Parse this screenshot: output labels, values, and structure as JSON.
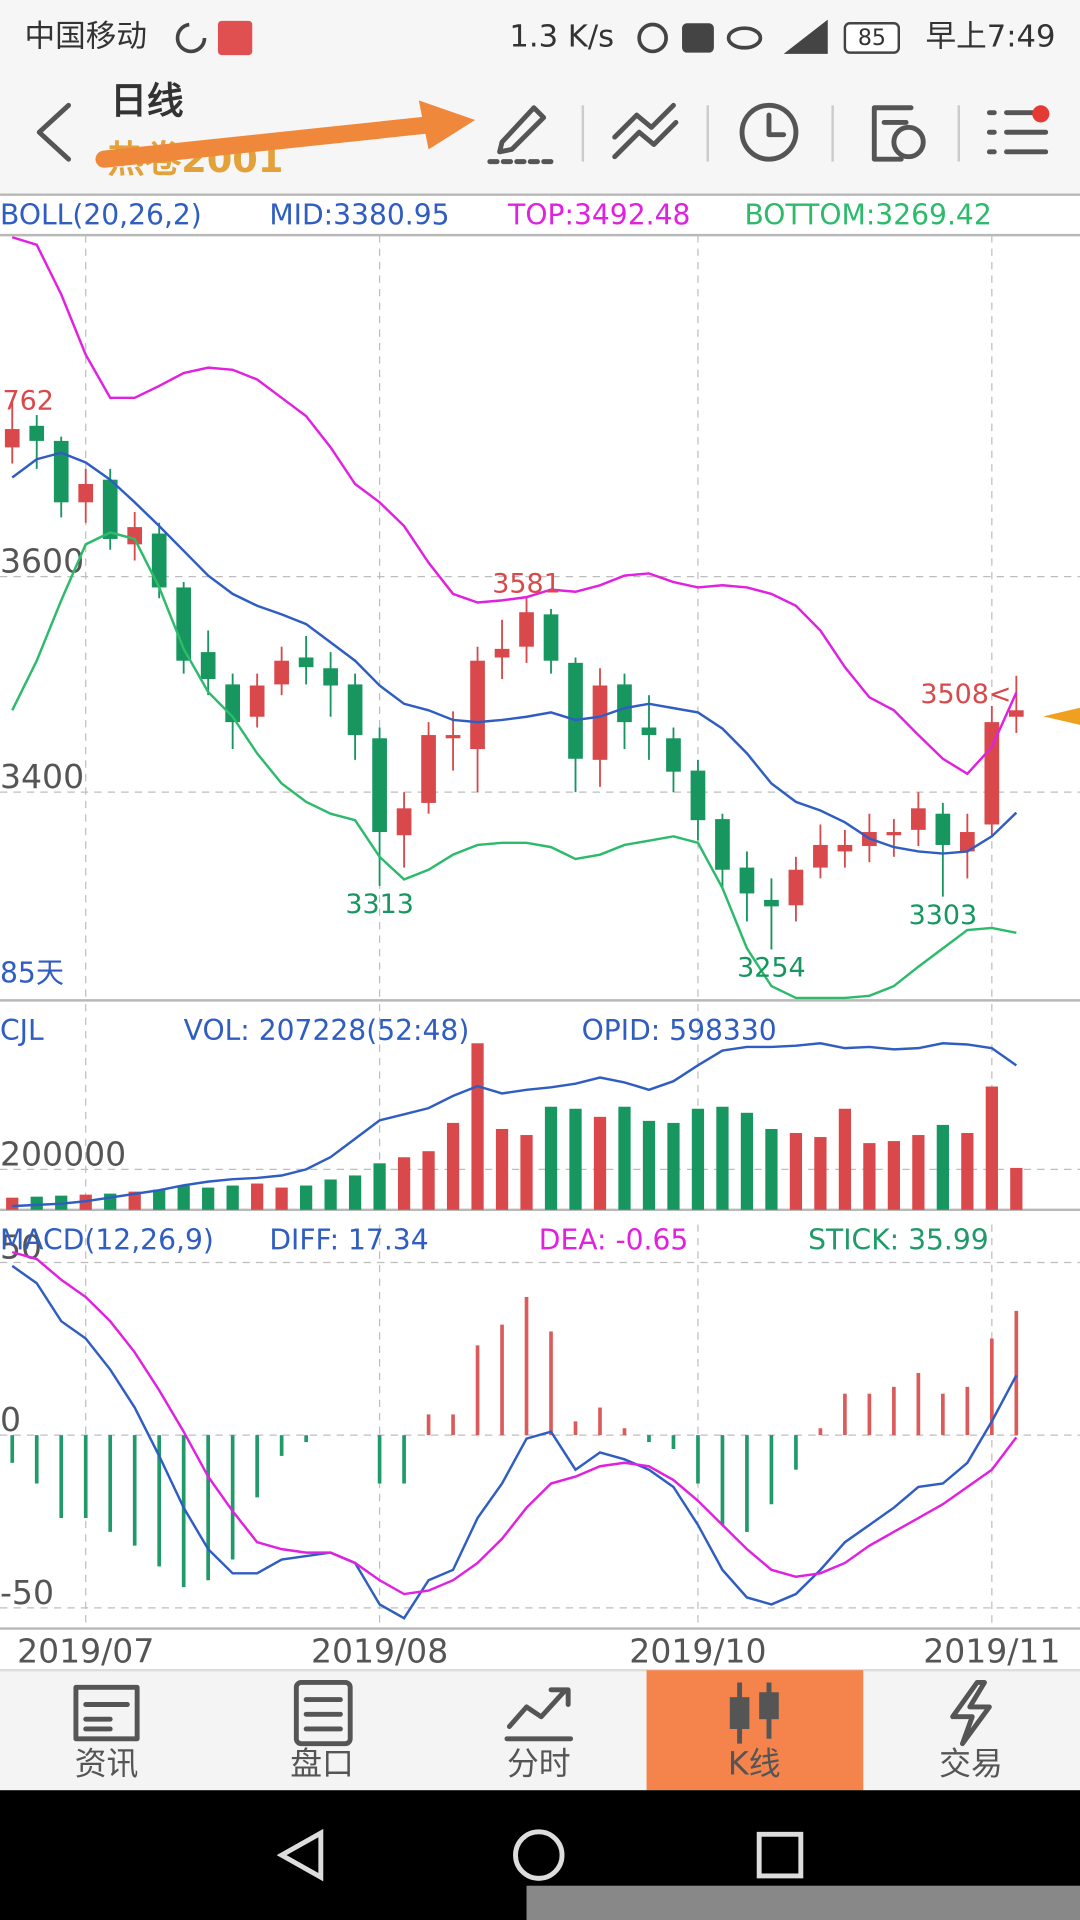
{
  "status_bar": {
    "carrier": "中国移动",
    "speed": "1.3 K/s",
    "battery": "85",
    "time": "早上7:49"
  },
  "header": {
    "title": "日线",
    "subtitle": "热卷2001"
  },
  "chart_data": [
    {
      "type": "candlestick",
      "title": "BOLL(20,26,2)",
      "period_label": "85天",
      "categories": [
        null,
        null,
        null,
        "2019/07",
        null,
        null,
        null,
        null,
        null,
        null,
        null,
        null,
        null,
        null,
        null,
        "2019/08",
        null,
        null,
        null,
        null,
        null,
        null,
        null,
        null,
        null,
        null,
        null,
        null,
        "2019/10",
        null,
        null,
        null,
        null,
        null,
        null,
        null,
        null,
        null,
        null,
        null,
        "2019/11",
        null
      ],
      "open": [
        3720,
        3740,
        3726,
        3669,
        3690,
        3630,
        3640,
        3590,
        3530,
        3500,
        3470,
        3500,
        3525,
        3515,
        3500,
        3450,
        3360,
        3390,
        3450,
        3440,
        3525,
        3535,
        3565,
        3520,
        3430,
        3500,
        3460,
        3450,
        3420,
        3375,
        3330,
        3300,
        3295,
        3330,
        3345,
        3350,
        3360,
        3365,
        3380,
        3345,
        3370,
        3470
      ],
      "high": [
        3762,
        3750,
        3730,
        3700,
        3700,
        3660,
        3650,
        3595,
        3550,
        3510,
        3510,
        3535,
        3545,
        3530,
        3510,
        3460,
        3400,
        3465,
        3475,
        3535,
        3560,
        3581,
        3570,
        3525,
        3515,
        3510,
        3490,
        3460,
        3430,
        3380,
        3345,
        3320,
        3340,
        3370,
        3365,
        3380,
        3375,
        3400,
        3390,
        3380,
        3480,
        3508
      ],
      "low": [
        3705,
        3700,
        3655,
        3650,
        3625,
        3615,
        3580,
        3510,
        3490,
        3440,
        3460,
        3490,
        3500,
        3470,
        3430,
        3313,
        3330,
        3380,
        3420,
        3400,
        3505,
        3520,
        3510,
        3400,
        3405,
        3440,
        3430,
        3400,
        3355,
        3310,
        3280,
        3254,
        3280,
        3320,
        3330,
        3335,
        3340,
        3350,
        3303,
        3320,
        3360,
        3455
      ],
      "close": [
        3737,
        3726,
        3669,
        3686,
        3635,
        3646,
        3590,
        3522,
        3505,
        3465,
        3499,
        3522,
        3516,
        3499,
        3453,
        3363,
        3385,
        3453,
        3453,
        3522,
        3533,
        3567,
        3522,
        3431,
        3499,
        3465,
        3453,
        3419,
        3374,
        3328,
        3306,
        3294,
        3328,
        3351,
        3351,
        3363,
        3363,
        3385,
        3351,
        3363,
        3465,
        3476
      ],
      "up_color": "#d9494b",
      "down_color": "#17965f",
      "series": [
        {
          "name": "MID:3380.95",
          "color": "#2f5dc2",
          "values": [
            3692,
            3709,
            3715,
            3706,
            3690,
            3669,
            3647,
            3624,
            3601,
            3584,
            3573,
            3565,
            3556,
            3539,
            3522,
            3499,
            3482,
            3476,
            3467,
            3465,
            3467,
            3470,
            3474,
            3467,
            3470,
            3478,
            3482,
            3478,
            3474,
            3459,
            3436,
            3408,
            3391,
            3383,
            3372,
            3357,
            3349,
            3345,
            3343,
            3345,
            3359,
            3380.95
          ]
        },
        {
          "name": "TOP:3492.48",
          "color": "#e021e0",
          "values": [
            3915,
            3908,
            3862,
            3806,
            3766,
            3766,
            3777,
            3789,
            3794,
            3792,
            3783,
            3766,
            3749,
            3720,
            3686,
            3669,
            3647,
            3613,
            3584,
            3576,
            3578,
            3581,
            3588,
            3586,
            3592,
            3601,
            3603,
            3595,
            3590,
            3592,
            3590,
            3584,
            3573,
            3550,
            3516,
            3488,
            3476,
            3453,
            3431,
            3417,
            3442,
            3492.48
          ]
        },
        {
          "name": "BOTTOM:3269.42",
          "color": "#2dbb6b",
          "values": [
            3476,
            3522,
            3578,
            3630,
            3641,
            3635,
            3590,
            3533,
            3493,
            3470,
            3436,
            3408,
            3391,
            3380,
            3374,
            3340,
            3319,
            3328,
            3342,
            3351,
            3353,
            3353,
            3349,
            3338,
            3342,
            3351,
            3355,
            3359,
            3353,
            3311,
            3255,
            3220,
            3209,
            3209,
            3209,
            3211,
            3220,
            3238,
            3255,
            3272,
            3274,
            3269.42
          ]
        }
      ],
      "ylim": [
        3209,
        3917
      ],
      "yticks": [
        3400,
        3600
      ],
      "annotations": [
        {
          "value": 3762,
          "label": "762"
        },
        {
          "value": 3581
        },
        {
          "value": 3313
        },
        {
          "value": 3254
        },
        {
          "value": 3303
        },
        {
          "value": 3508,
          "label": "3508<"
        }
      ]
    },
    {
      "type": "bar",
      "title": "CJL",
      "series": [
        {
          "name": "VOL: 207228(52:48)",
          "color": "#2f5dc2",
          "values": [
            60000,
            65000,
            70000,
            75000,
            80000,
            90000,
            100000,
            120000,
            110000,
            120000,
            130000,
            110000,
            120000,
            150000,
            170000,
            230000,
            260000,
            290000,
            430000,
            824000,
            400000,
            370000,
            510000,
            500000,
            460000,
            510000,
            440000,
            430000,
            500000,
            510000,
            480000,
            400000,
            380000,
            360000,
            500000,
            330000,
            340000,
            370000,
            420000,
            380000,
            610000,
            207228
          ]
        },
        {
          "name": "OPID: 598330",
          "color": "#2f5dc2",
          "axis": "y2",
          "values": [
            307590,
            310120,
            312650,
            317710,
            325300,
            332890,
            340480,
            350600,
            358190,
            363250,
            365780,
            370840,
            383490,
            408790,
            446740,
            484690,
            497340,
            509990,
            535290,
            555530,
            540350,
            547940,
            553000,
            560590,
            573240,
            563120,
            547940,
            565650,
            598540,
            628900,
            636490,
            636490,
            639020,
            644080,
            633960,
            636490,
            631430,
            633960,
            644080,
            641550,
            633960,
            598330
          ]
        }
      ],
      "ylim": [
        0,
        1018000
      ],
      "yticks": [
        200000
      ],
      "y2lim": [
        300000,
        725000
      ]
    },
    {
      "type": "macd",
      "title": "MACD(12,26,9)",
      "series": [
        {
          "name": "DIFF: 17.34",
          "color": "#2f5dc2",
          "values": [
            49,
            44,
            33,
            28,
            19,
            8,
            -6,
            -21,
            -33,
            -40,
            -40,
            -36,
            -35,
            -34,
            -37,
            -49,
            -53,
            -42,
            -39,
            -24,
            -14,
            -1,
            1,
            -10,
            -5,
            -7,
            -10,
            -15,
            -26,
            -39,
            -47,
            -49,
            -46,
            -39,
            -31,
            -26,
            -21,
            -15,
            -14,
            -8,
            4,
            17.34
          ]
        },
        {
          "name": "DEA: -0.65",
          "color": "#e021e0",
          "values": [
            53,
            51,
            45,
            40,
            33,
            24,
            13,
            1,
            -12,
            -22,
            -31,
            -33,
            -34,
            -34,
            -37,
            -42,
            -46,
            -45,
            -42,
            -37,
            -30,
            -21,
            -14,
            -12,
            -9,
            -8,
            -9,
            -13,
            -19,
            -26,
            -33,
            -39,
            -41,
            -40,
            -37,
            -32,
            -28,
            -24,
            -20,
            -15,
            -10,
            -0.65
          ]
        },
        {
          "name": "STICK: 35.99",
          "color": "#1f9a68",
          "up_color": "#dc5a5a",
          "values": [
            -8,
            -14,
            -24,
            -24,
            -28,
            -32,
            -38,
            -44,
            -42,
            -36,
            -18,
            -6,
            -2,
            0,
            0,
            -14,
            -14,
            6,
            6,
            26,
            32,
            40,
            30,
            4,
            8,
            2,
            -2,
            -4,
            -14,
            -26,
            -28,
            -20,
            -10,
            2,
            12,
            12,
            14,
            18,
            12,
            14,
            28,
            35.99
          ]
        }
      ],
      "ylim": [
        -56,
        61
      ],
      "yticks": [
        -50,
        0,
        50
      ]
    }
  ],
  "tabs": [
    "资讯",
    "盘口",
    "分时",
    "K线",
    "交易"
  ]
}
